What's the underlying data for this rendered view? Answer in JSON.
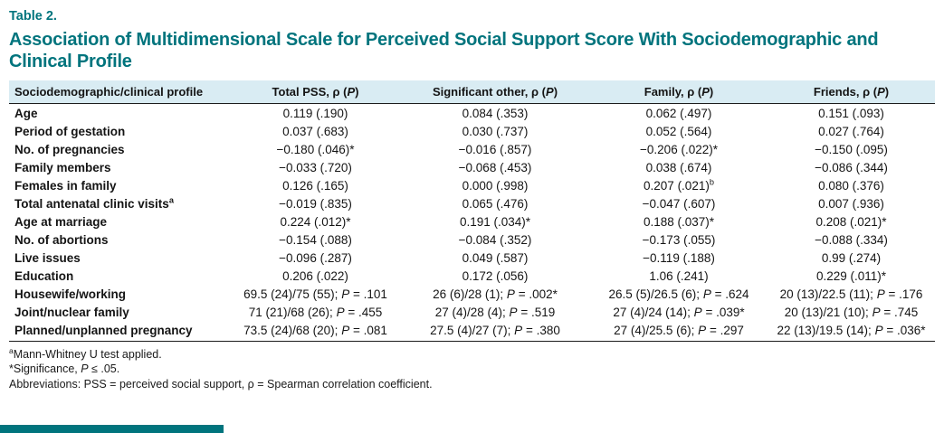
{
  "page": {
    "table_label": "Table 2.",
    "title": "Association of Multidimensional Scale for Perceived Social Support Score With Sociodemographic and Clinical Profile"
  },
  "colors": {
    "accent_teal": "#00747d",
    "header_bg": "#d9ecf3"
  },
  "table": {
    "columns": [
      "Sociodemographic/clinical profile",
      "Total PSS, ρ ([i]P[/i])",
      "Significant other, ρ ([i]P[/i])",
      "Family, ρ ([i]P[/i])",
      "Friends, ρ ([i]P[/i])"
    ],
    "rows": [
      {
        "label": "Age",
        "values": [
          "0.119 (.190)",
          "0.084 (.353)",
          "0.062 (.497)",
          "0.151 (.093)"
        ]
      },
      {
        "label": "Period of gestation",
        "values": [
          "0.037 (.683)",
          "0.030 (.737)",
          "0.052 (.564)",
          "0.027 (.764)"
        ]
      },
      {
        "label": "No. of pregnancies",
        "values": [
          "−0.180 (.046)*",
          "−0.016 (.857)",
          "−0.206 (.022)*",
          "−0.150 (.095)"
        ]
      },
      {
        "label": "Family members",
        "values": [
          "−0.033 (.720)",
          "−0.068 (.453)",
          "0.038 (.674)",
          "−0.086 (.344)"
        ]
      },
      {
        "label": "Females in family",
        "values": [
          "0.126 (.165)",
          "0.000 (.998)",
          "0.207 (.021)[sup]b[/sup]",
          "0.080 (.376)"
        ]
      },
      {
        "label": "Total antenatal clinic visits[sup]a[/sup]",
        "values": [
          "−0.019 (.835)",
          "0.065 (.476)",
          "−0.047 (.607)",
          "0.007 (.936)"
        ]
      },
      {
        "label": "Age at marriage",
        "values": [
          "0.224 (.012)*",
          "0.191 (.034)*",
          "0.188 (.037)*",
          "0.208 (.021)*"
        ]
      },
      {
        "label": "No. of abortions",
        "values": [
          "−0.154 (.088)",
          "−0.084 (.352)",
          "−0.173 (.055)",
          "−0.088 (.334)"
        ]
      },
      {
        "label": "Live issues",
        "values": [
          "−0.096 (.287)",
          "0.049 (.587)",
          "−0.119 (.188)",
          "0.99 (.274)"
        ]
      },
      {
        "label": "Education",
        "values": [
          "0.206 (.022)",
          "0.172 (.056)",
          "1.06 (.241)",
          "0.229 (.011)*"
        ]
      },
      {
        "label": "Housewife/working",
        "values": [
          "69.5 (24)/75 (55); [i]P[/i] = .101",
          "26 (6)/28 (1); [i]P[/i] = .002*",
          "26.5 (5)/26.5 (6); [i]P[/i] = .624",
          "20 (13)/22.5 (11); [i]P[/i] = .176"
        ]
      },
      {
        "label": "Joint/nuclear family",
        "values": [
          "71 (21)/68 (26); [i]P[/i] = .455",
          "27 (4)/28 (4); [i]P[/i] = .519",
          "27 (4)/24 (14); [i]P[/i] = .039*",
          "20 (13)/21 (10); [i]P[/i] = .745"
        ]
      },
      {
        "label": "Planned/unplanned pregnancy",
        "values": [
          "73.5 (24)/68 (20); [i]P[/i] = .081",
          "27.5 (4)/27 (7); [i]P[/i] = .380",
          "27 (4)/25.5 (6); [i]P[/i] = .297",
          "22 (13)/19.5 (14); [i]P[/i] = .036*"
        ]
      }
    ]
  },
  "footnotes": [
    "[sup]a[/sup]Mann-Whitney U test applied.",
    "*Significance, [i]P[/i] ≤ .05.",
    "Abbreviations: PSS = perceived social support, ρ = Spearman correlation coefficient."
  ]
}
